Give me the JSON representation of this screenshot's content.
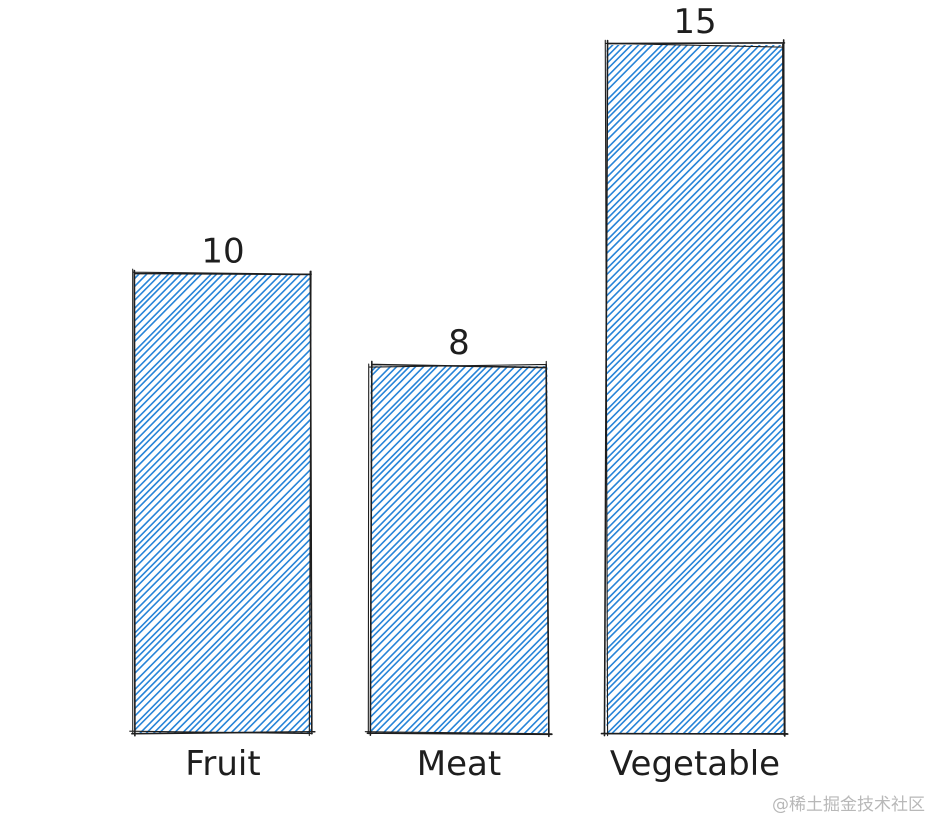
{
  "chart_data": {
    "type": "bar",
    "style": "hand-drawn hachure",
    "categories": [
      "Fruit",
      "Meat",
      "Vegetable"
    ],
    "values": [
      10,
      8,
      15
    ],
    "title": "",
    "xlabel": "",
    "ylabel": "",
    "ylim": [
      0,
      15
    ],
    "grid": false,
    "colors": {
      "fill": "#1c7ed6",
      "stroke": "#1e1e1e"
    }
  },
  "watermark": "@稀土掘金技术社区"
}
